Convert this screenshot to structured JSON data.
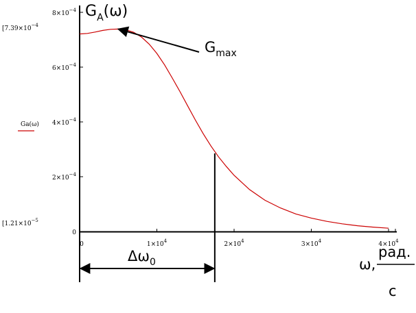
{
  "chart_data": {
    "type": "line",
    "title": "",
    "xlim": [
      0,
      40000
    ],
    "ylim": [
      0,
      0.0008
    ],
    "x_ticks": [
      {
        "value": 0,
        "label": "0"
      },
      {
        "value": 10000,
        "label": "1×10",
        "exp": "4"
      },
      {
        "value": 20000,
        "label": "2×10",
        "exp": "4"
      },
      {
        "value": 30000,
        "label": "3×10",
        "exp": "4"
      },
      {
        "value": 40000,
        "label": "4×10",
        "exp": "4"
      }
    ],
    "y_ticks": [
      {
        "value": 0,
        "label": "0"
      },
      {
        "value": 0.0002,
        "label": "2×10",
        "exp": "−4"
      },
      {
        "value": 0.0004,
        "label": "4×10",
        "exp": "−4"
      },
      {
        "value": 0.0006,
        "label": "6×10",
        "exp": "−4"
      },
      {
        "value": 0.0008,
        "label": "8×10",
        "exp": "−4"
      }
    ],
    "y_range_labels": {
      "max": {
        "label": "7.39×10",
        "exp": "−4"
      },
      "min": {
        "label": "1.21×10",
        "exp": "−5"
      }
    },
    "legend": {
      "label": "Ga(ω)",
      "color": "#cc0000",
      "placement": "left"
    },
    "series": [
      {
        "color": "#cc0000",
        "x": [
          0,
          1000,
          2000,
          3000,
          4000,
          5000,
          6000,
          7000,
          8000,
          9000,
          10000,
          11000,
          12000,
          13000,
          14000,
          15000,
          16000,
          17000,
          18000,
          19000,
          20000,
          22000,
          24000,
          26000,
          28000,
          30000,
          32000,
          34000,
          36000,
          38000,
          40000
        ],
        "y": [
          0.000721,
          0.000723,
          0.000728,
          0.000734,
          0.000738,
          0.000739,
          0.000736,
          0.000727,
          0.00071,
          0.000684,
          0.00065,
          0.000608,
          0.00056,
          0.00051,
          0.000458,
          0.000406,
          0.000357,
          0.000312,
          0.000272,
          0.000237,
          0.000205,
          0.000153,
          0.000114,
          8.6e-05,
          6.4e-05,
          4.9e-05,
          3.7e-05,
          2.8e-05,
          2.1e-05,
          1.6e-05,
          1.21e-05
        ]
      }
    ],
    "annotations": {
      "axis_title_y": {
        "main": "G",
        "sub": "A",
        "rest": "(ω)"
      },
      "gmax": {
        "main": "G",
        "sub": "max",
        "point_x": 5000,
        "point_y": 0.000739
      },
      "delta": {
        "main": "Δω",
        "sub": "0",
        "x_start": 0,
        "x_end": 17500
      },
      "marker_line": {
        "x": 17500,
        "y": 0.000285
      },
      "x_unit": {
        "prefix": "ω,",
        "numerator": "рад.",
        "denominator": "c"
      }
    }
  }
}
